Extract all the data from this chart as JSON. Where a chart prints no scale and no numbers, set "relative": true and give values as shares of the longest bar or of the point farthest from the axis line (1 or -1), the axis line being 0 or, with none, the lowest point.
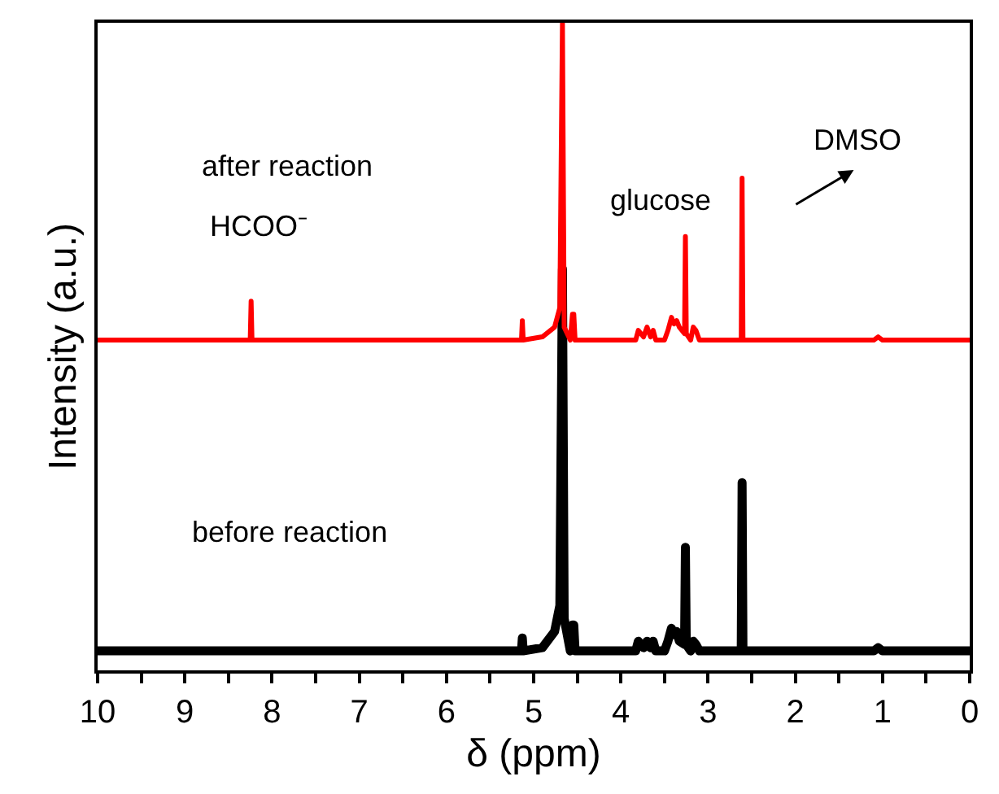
{
  "chart_data": {
    "type": "line",
    "relative": true,
    "xlabel": "δ (ppm)",
    "ylabel": "Intensity (a.u.)",
    "xlim": [
      10,
      0
    ],
    "xticks": [
      0,
      {
        "value": 0.5,
        "label": null
      },
      1,
      {
        "value": 1.5,
        "label": null
      },
      2,
      {
        "value": 2.5,
        "label": null
      },
      3,
      {
        "value": 3.5,
        "label": null
      },
      4,
      {
        "value": 4.5,
        "label": null
      },
      5,
      {
        "value": 5.5,
        "label": null
      },
      6,
      {
        "value": 6.5,
        "label": null
      },
      7,
      {
        "value": 7.5,
        "label": null
      },
      8,
      {
        "value": 8.5,
        "label": null
      },
      9,
      {
        "value": 9.5,
        "label": null
      },
      10
    ],
    "marker": "none",
    "line_style": "solid",
    "tick_labels": "x",
    "series": [
      {
        "color": "#000000",
        "x": [
          10,
          5.3,
          5.14,
          5.13,
          5.12,
          4.9,
          4.76,
          4.7,
          4.67,
          4.65,
          4.58,
          4.555,
          4.54,
          4.525,
          4.3,
          3.83,
          3.8,
          3.77,
          3.74,
          3.7,
          3.66,
          3.63,
          3.6,
          3.5,
          3.46,
          3.42,
          3.39,
          3.36,
          3.33,
          3.27,
          3.26,
          3.25,
          3.2,
          3.17,
          3.14,
          3.1,
          2.62,
          2.61,
          2.6,
          1.1,
          1.05,
          1.0,
          0
        ],
        "values": [
          0.03,
          0.03,
          0.03,
          0.05,
          0.03,
          0.035,
          0.06,
          0.1,
          0.62,
          0.08,
          0.03,
          0.07,
          0.07,
          0.03,
          0.03,
          0.03,
          0.045,
          0.04,
          0.035,
          0.045,
          0.035,
          0.045,
          0.03,
          0.03,
          0.045,
          0.065,
          0.055,
          0.06,
          0.045,
          0.04,
          0.19,
          0.04,
          0.03,
          0.045,
          0.04,
          0.03,
          0.03,
          0.29,
          0.03,
          0.03,
          0.035,
          0.03,
          0.03
        ]
      },
      {
        "color": "#ff0000",
        "x": [
          10,
          8.25,
          8.24,
          8.23,
          5.3,
          5.14,
          5.13,
          5.12,
          4.9,
          4.76,
          4.7,
          4.67,
          4.65,
          4.58,
          4.555,
          4.54,
          4.525,
          4.3,
          3.83,
          3.8,
          3.77,
          3.74,
          3.7,
          3.66,
          3.63,
          3.6,
          3.5,
          3.46,
          3.42,
          3.39,
          3.36,
          3.33,
          3.27,
          3.26,
          3.25,
          3.2,
          3.17,
          3.14,
          3.1,
          2.62,
          2.61,
          2.6,
          1.1,
          1.05,
          1.0,
          0
        ],
        "values": [
          0.51,
          0.51,
          0.57,
          0.51,
          0.51,
          0.51,
          0.54,
          0.51,
          0.515,
          0.53,
          0.56,
          1,
          0.53,
          0.51,
          0.55,
          0.55,
          0.51,
          0.51,
          0.51,
          0.525,
          0.52,
          0.515,
          0.53,
          0.515,
          0.525,
          0.51,
          0.51,
          0.525,
          0.545,
          0.535,
          0.54,
          0.53,
          0.52,
          0.67,
          0.52,
          0.51,
          0.53,
          0.525,
          0.51,
          0.51,
          0.76,
          0.51,
          0.51,
          0.515,
          0.51,
          0.51
        ]
      }
    ],
    "annotations": [
      "after reaction",
      "before reaction",
      "HCOO⁻",
      "glucose",
      "DMSO"
    ]
  }
}
